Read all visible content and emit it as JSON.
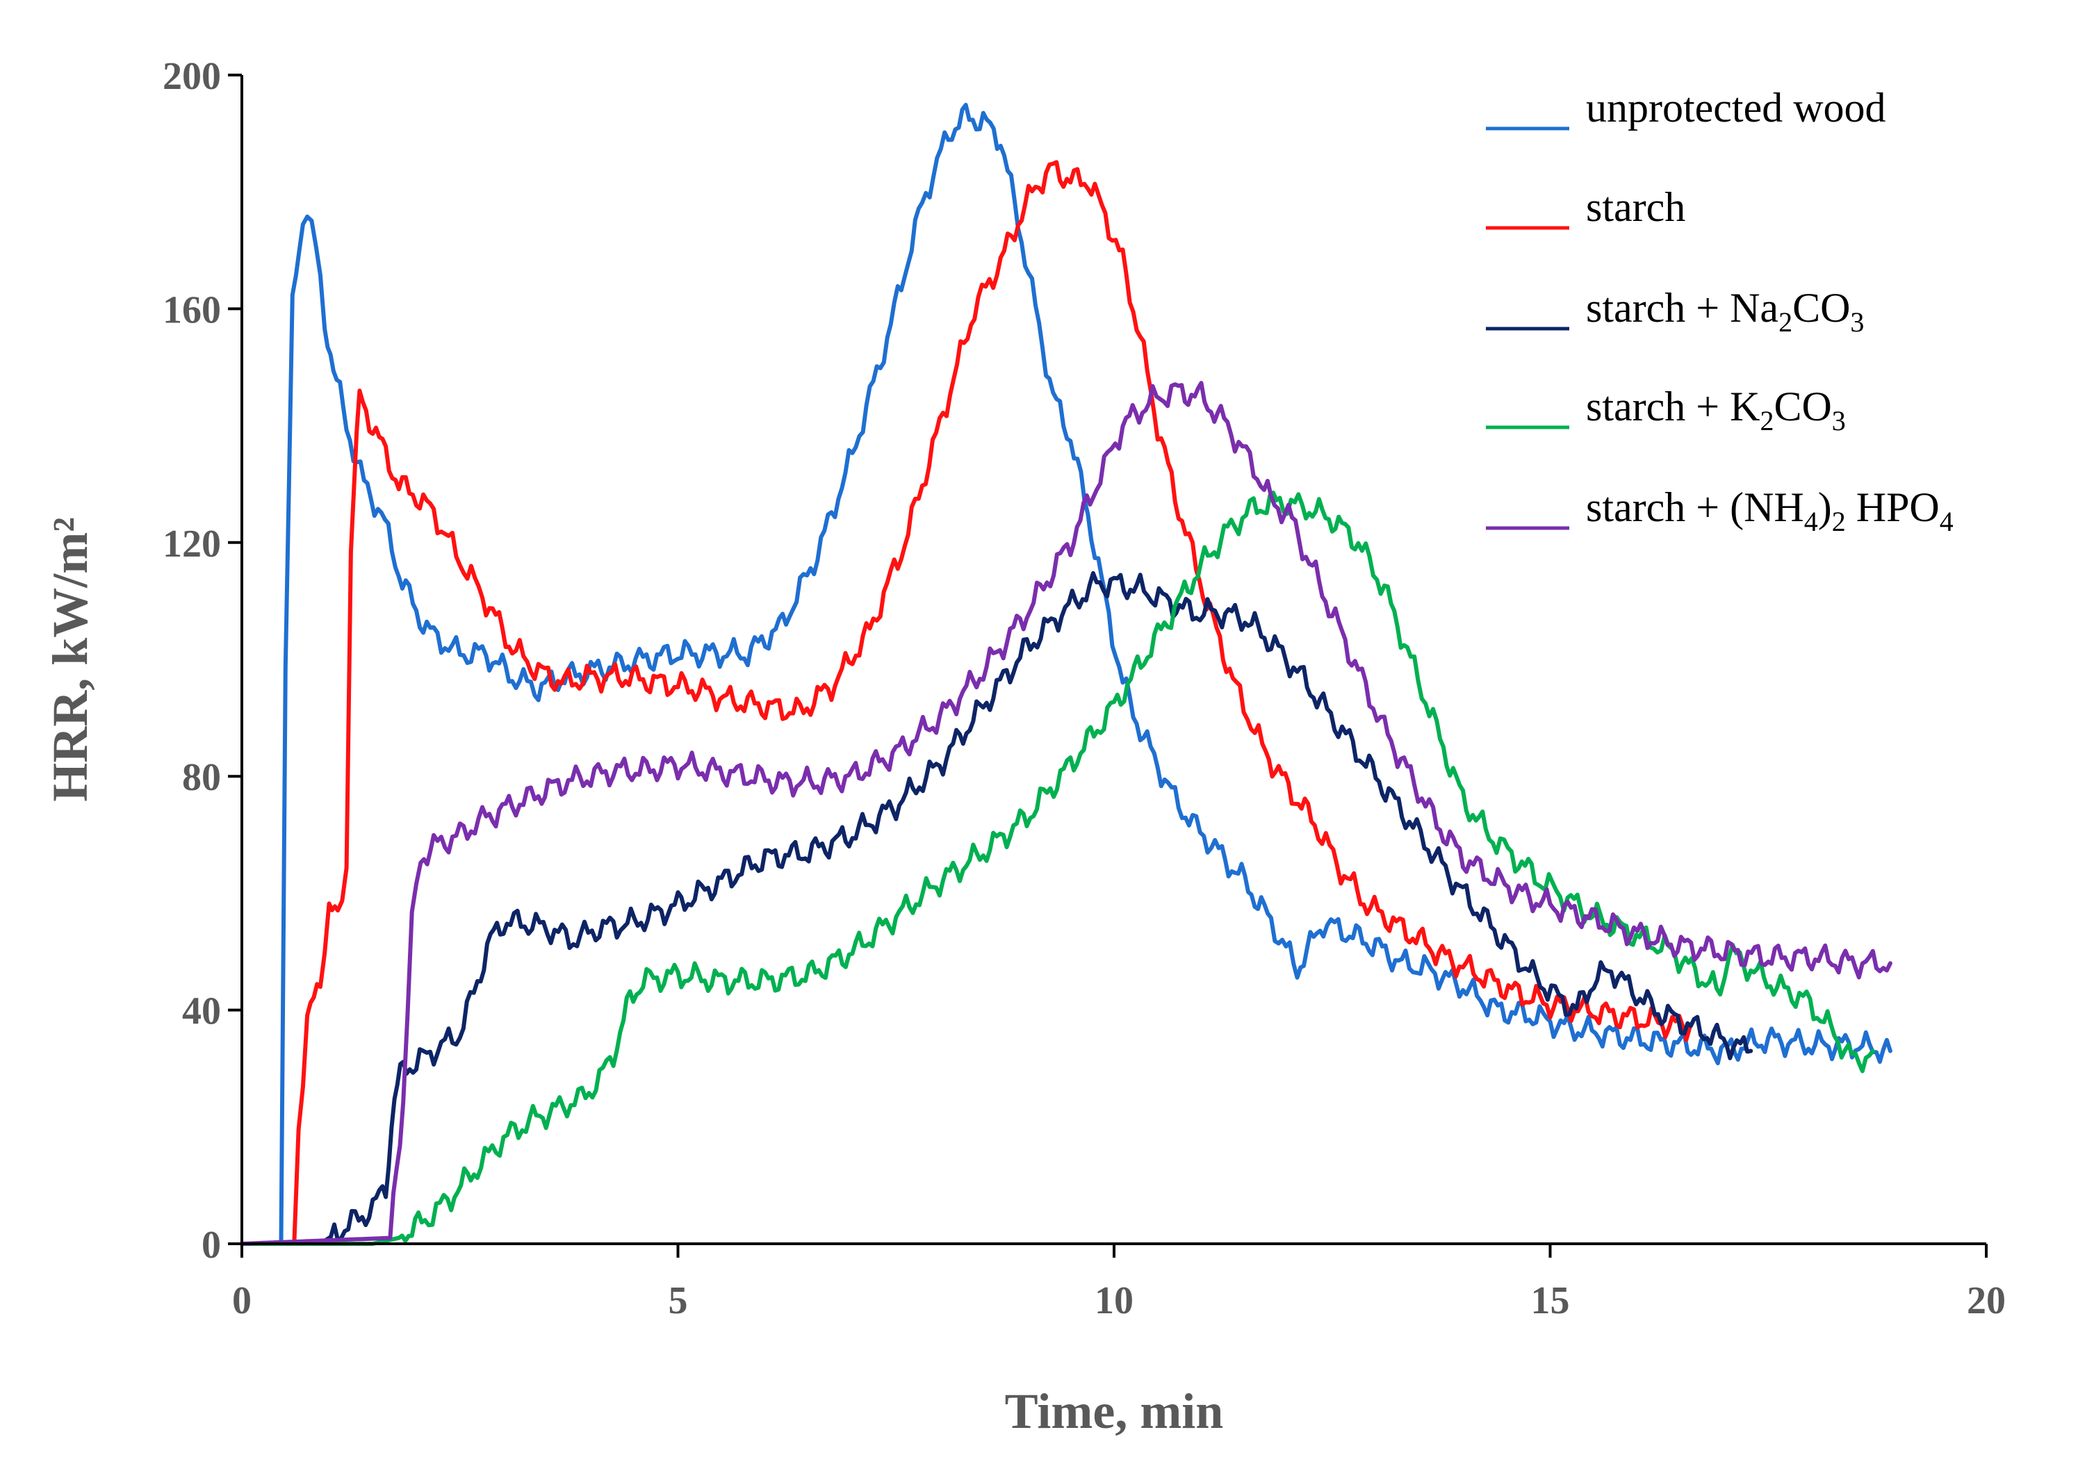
{
  "chart_data": {
    "type": "line",
    "title": "",
    "xlabel": "Time, min",
    "ylabel": "HRR, kW/m²",
    "xlim": [
      0,
      20
    ],
    "ylim": [
      0,
      200
    ],
    "xticks": [
      0,
      5,
      10,
      15,
      20
    ],
    "yticks": [
      0,
      40,
      80,
      120,
      160,
      200
    ],
    "grid": false,
    "legend_position": "top-right",
    "series": [
      {
        "name": "unprotected wood",
        "legend": [
          "unprotected wood"
        ],
        "color": "#1F6FD1",
        "x": [
          0,
          0.45,
          0.5,
          0.58,
          0.7,
          0.75,
          0.85,
          0.95,
          1.05,
          1.2,
          1.4,
          1.6,
          1.8,
          2.0,
          2.2,
          2.5,
          2.8,
          3.1,
          3.4,
          3.7,
          4.0,
          4.3,
          4.6,
          5.0,
          5.4,
          5.8,
          6.2,
          6.6,
          7.0,
          7.4,
          7.8,
          8.1,
          8.3,
          8.5,
          8.7,
          8.9,
          9.1,
          9.3,
          9.5,
          9.7,
          9.9,
          10.1,
          10.3,
          10.5,
          10.7,
          10.9,
          11.2,
          11.5,
          11.8,
          12.1,
          12.4,
          12.7,
          13.0,
          13.3,
          13.6,
          14.0,
          14.4,
          14.8,
          15.2,
          15.6,
          16.0,
          16.5,
          17.0,
          17.5,
          18.0,
          18.5,
          18.9
        ],
        "y": [
          0,
          0,
          100,
          160,
          175,
          178,
          170,
          158,
          150,
          140,
          130,
          125,
          115,
          108,
          104,
          101,
          101,
          97,
          95,
          97,
          98,
          99,
          100,
          101,
          101,
          101,
          106,
          118,
          135,
          155,
          178,
          190,
          193,
          192,
          189,
          175,
          160,
          145,
          138,
          125,
          110,
          96,
          88,
          82,
          76,
          72,
          67,
          62,
          55,
          47,
          55,
          53,
          51,
          48,
          47,
          44,
          40,
          39,
          37,
          36,
          35,
          34,
          33,
          35,
          34,
          34,
          33
        ]
      },
      {
        "name": "starch",
        "legend": [
          "starch"
        ],
        "color": "#FF1111",
        "x": [
          0,
          0.6,
          0.65,
          0.75,
          0.9,
          1.0,
          1.1,
          1.2,
          1.25,
          1.35,
          1.5,
          1.8,
          2.0,
          2.2,
          2.5,
          2.8,
          3.1,
          3.4,
          3.7,
          4.0,
          4.4,
          4.8,
          5.2,
          5.6,
          6.0,
          6.4,
          6.8,
          7.2,
          7.6,
          8.0,
          8.4,
          8.7,
          8.9,
          9.1,
          9.3,
          9.5,
          9.7,
          9.9,
          10.1,
          10.3,
          10.5,
          10.7,
          10.9,
          11.1,
          11.4,
          11.7,
          12.0,
          12.3,
          12.6,
          12.9,
          13.2,
          13.5,
          13.8,
          14.2,
          14.6,
          15.0,
          15.4,
          15.8,
          16.2,
          16.6
        ],
        "y": [
          0,
          0,
          20,
          38,
          45,
          58,
          55,
          65,
          120,
          145,
          140,
          130,
          128,
          125,
          117,
          110,
          102,
          98,
          96,
          97,
          97,
          96,
          95,
          93,
          92,
          91,
          96,
          105,
          120,
          140,
          160,
          168,
          175,
          181,
          184,
          182,
          182,
          176,
          168,
          155,
          140,
          128,
          118,
          108,
          95,
          85,
          78,
          72,
          64,
          58,
          55,
          52,
          49,
          46,
          43,
          41,
          40,
          39,
          38,
          37
        ]
      },
      {
        "name": "starch + Na2CO3",
        "legend": [
          "starch + Na",
          "2",
          "CO",
          "3"
        ],
        "color": "#0D2466",
        "x": [
          0,
          0.9,
          1.1,
          1.3,
          1.5,
          1.65,
          1.75,
          1.85,
          2.0,
          2.2,
          2.5,
          2.7,
          2.85,
          3.0,
          3.2,
          3.5,
          3.8,
          4.1,
          4.5,
          5.0,
          5.5,
          6.0,
          6.5,
          7.0,
          7.5,
          8.0,
          8.5,
          9.0,
          9.4,
          9.8,
          10.0,
          10.3,
          10.6,
          10.9,
          11.2,
          11.5,
          11.8,
          12.1,
          12.4,
          12.7,
          13.0,
          13.3,
          13.6,
          14.0,
          14.4,
          14.8,
          15.1,
          15.3,
          15.5,
          15.7,
          15.9,
          16.2,
          16.5,
          16.8,
          17.1,
          17.3
        ],
        "y": [
          0,
          0,
          2,
          4,
          6,
          10,
          25,
          30,
          31,
          33,
          36,
          45,
          52,
          55,
          55,
          54,
          52,
          54,
          55,
          58,
          62,
          66,
          67,
          70,
          75,
          82,
          92,
          102,
          108,
          113,
          113,
          112,
          110,
          108,
          108,
          107,
          103,
          98,
          92,
          86,
          80,
          74,
          68,
          60,
          53,
          46,
          42,
          40,
          45,
          47,
          44,
          40,
          38,
          36,
          34,
          33
        ]
      },
      {
        "name": "starch + K2CO3",
        "legend": [
          "starch + K",
          "2",
          "CO",
          "3"
        ],
        "color": "#00B050",
        "x": [
          0,
          1.5,
          1.8,
          2.1,
          2.4,
          2.7,
          3.0,
          3.3,
          3.6,
          3.9,
          4.1,
          4.3,
          4.45,
          4.6,
          5.0,
          5.5,
          6.0,
          6.5,
          7.0,
          7.5,
          8.0,
          8.5,
          9.0,
          9.5,
          10.0,
          10.5,
          11.0,
          11.3,
          11.6,
          11.9,
          12.2,
          12.5,
          12.8,
          13.1,
          13.4,
          13.7,
          14.0,
          14.3,
          14.6,
          14.9,
          15.2,
          15.5,
          15.8,
          16.1,
          16.4,
          16.7,
          16.95,
          17.0,
          17.05,
          17.3,
          17.6,
          17.9,
          18.1,
          18.3,
          18.5,
          18.7
        ],
        "y": [
          0,
          0,
          1,
          4,
          8,
          13,
          18,
          21,
          23,
          25,
          28,
          34,
          42,
          45,
          46,
          45,
          45,
          46,
          50,
          56,
          62,
          67,
          73,
          82,
          92,
          104,
          116,
          122,
          126,
          127,
          126,
          124,
          120,
          112,
          100,
          88,
          76,
          70,
          66,
          62,
          59,
          56,
          54,
          52,
          50,
          46,
          43,
          47,
          50,
          47,
          44,
          42,
          39,
          35,
          31,
          33
        ]
      },
      {
        "name": "starch + (NH4)2 HPO4",
        "legend": [
          "starch + (NH",
          "4",
          ")",
          "2",
          " HPO",
          "4"
        ],
        "color": "#7A2EAD",
        "x": [
          0,
          1.7,
          1.85,
          1.95,
          2.05,
          2.2,
          2.5,
          2.8,
          3.1,
          3.4,
          3.7,
          4.0,
          4.3,
          4.6,
          5.0,
          5.4,
          5.8,
          6.2,
          6.6,
          7.0,
          7.5,
          8.0,
          8.5,
          9.0,
          9.5,
          9.8,
          10.1,
          10.4,
          10.7,
          11.0,
          11.3,
          11.6,
          11.8,
          12.0,
          12.2,
          12.5,
          12.8,
          13.1,
          13.4,
          13.7,
          14.0,
          14.4,
          14.8,
          15.2,
          15.6,
          16.0,
          16.5,
          17.0,
          17.5,
          18.0,
          18.5,
          18.9
        ],
        "y": [
          0,
          1,
          25,
          55,
          66,
          68,
          70,
          73,
          75,
          77,
          79,
          80,
          81,
          81,
          82,
          81,
          80,
          79,
          79,
          80,
          84,
          90,
          98,
          108,
          120,
          130,
          140,
          144,
          146,
          145,
          140,
          133,
          127,
          125,
          118,
          108,
          98,
          88,
          80,
          72,
          66,
          62,
          59,
          57,
          55,
          53,
          51,
          50,
          49,
          49,
          48,
          48
        ]
      }
    ]
  }
}
